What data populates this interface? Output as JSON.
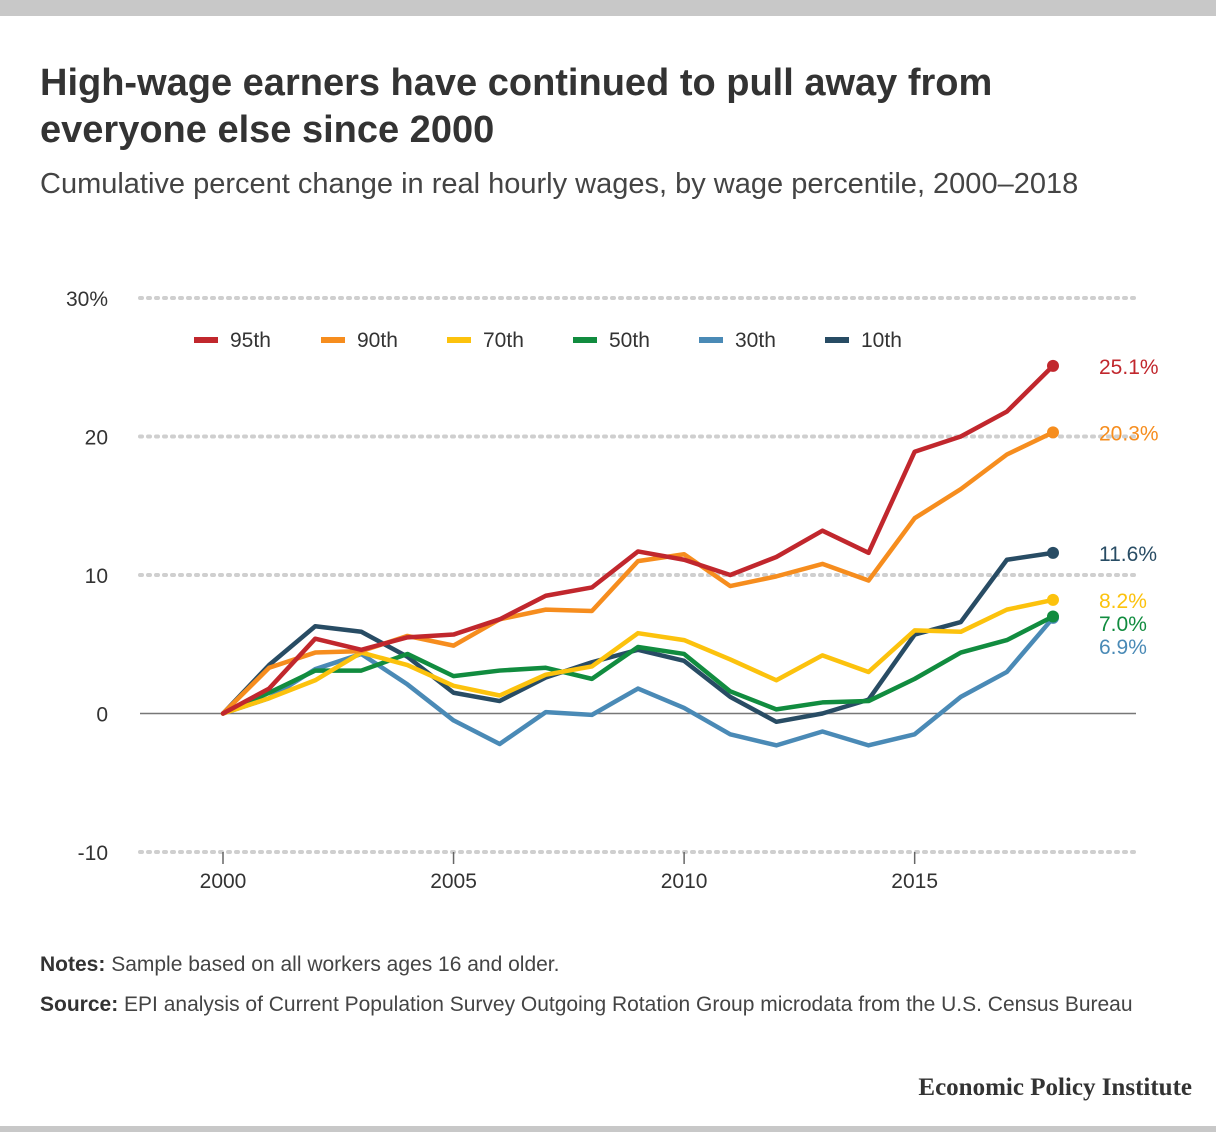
{
  "title": "High-wage earners have continued to pull away from everyone else since 2000",
  "subtitle": "Cumulative percent change in real hourly wages, by wage percentile, 2000–2018",
  "notes": {
    "notes_label": "Notes:",
    "notes_text": "Sample based on all workers ages 16 and older.",
    "source_label": "Source:",
    "source_text": "EPI analysis of Current Population Survey Outgoing Rotation Group microdata from the U.S. Census Bureau"
  },
  "brand": "Economic Policy Institute",
  "chart_data": {
    "type": "line",
    "title": "High-wage earners have continued to pull away from everyone else since 2000",
    "xlabel": "",
    "ylabel": "",
    "x": [
      2000,
      2001,
      2002,
      2003,
      2004,
      2005,
      2006,
      2007,
      2008,
      2009,
      2010,
      2011,
      2012,
      2013,
      2014,
      2015,
      2016,
      2017,
      2018
    ],
    "xlim": [
      1998.2,
      2019.8
    ],
    "ylim": [
      -10,
      30
    ],
    "x_ticks": [
      2000,
      2005,
      2010,
      2015
    ],
    "x_tick_labels": [
      "2000",
      "2005",
      "2010",
      "2015"
    ],
    "y_ticks": [
      -10,
      0,
      10,
      20,
      30
    ],
    "y_tick_labels": [
      "-10",
      "0",
      "10",
      "20",
      "30%"
    ],
    "legend_position": "top-left",
    "series": [
      {
        "name": "95th",
        "color": "#c1272d",
        "end_label": "25.1%",
        "values": [
          0,
          1.8,
          5.4,
          4.6,
          5.5,
          5.7,
          6.8,
          8.5,
          9.1,
          11.7,
          11.1,
          10.0,
          11.3,
          13.2,
          11.6,
          18.9,
          20.0,
          21.8,
          25.1
        ]
      },
      {
        "name": "90th",
        "color": "#f68d1e",
        "end_label": "20.3%",
        "values": [
          0,
          3.3,
          4.4,
          4.5,
          5.6,
          4.9,
          6.8,
          7.5,
          7.4,
          11.0,
          11.5,
          9.2,
          9.9,
          10.8,
          9.6,
          14.1,
          16.2,
          18.7,
          20.3
        ]
      },
      {
        "name": "70th",
        "color": "#fcc20d",
        "end_label": "8.2%",
        "values": [
          0,
          1.1,
          2.4,
          4.4,
          3.5,
          2.0,
          1.3,
          2.8,
          3.4,
          5.8,
          5.3,
          3.9,
          2.4,
          4.2,
          3.0,
          6.0,
          5.9,
          7.5,
          8.2
        ]
      },
      {
        "name": "50th",
        "color": "#118c3f",
        "end_label": "7.0%",
        "values": [
          0,
          1.5,
          3.1,
          3.1,
          4.3,
          2.7,
          3.1,
          3.3,
          2.5,
          4.8,
          4.3,
          1.6,
          0.3,
          0.8,
          0.9,
          2.5,
          4.4,
          5.3,
          7.0
        ]
      },
      {
        "name": "30th",
        "color": "#4a8ab6",
        "end_label": "6.9%",
        "values": [
          0,
          1.1,
          3.2,
          4.3,
          2.1,
          -0.5,
          -2.2,
          0.1,
          -0.1,
          1.8,
          0.4,
          -1.5,
          -2.3,
          -1.3,
          -2.3,
          -1.5,
          1.2,
          3.0,
          6.9
        ]
      },
      {
        "name": "10th",
        "color": "#284c64",
        "end_label": "11.6%",
        "values": [
          0,
          3.5,
          6.3,
          5.9,
          4.1,
          1.5,
          0.9,
          2.6,
          3.7,
          4.6,
          3.8,
          1.2,
          -0.6,
          0.0,
          1.0,
          5.7,
          6.6,
          11.1,
          11.6
        ]
      }
    ]
  }
}
